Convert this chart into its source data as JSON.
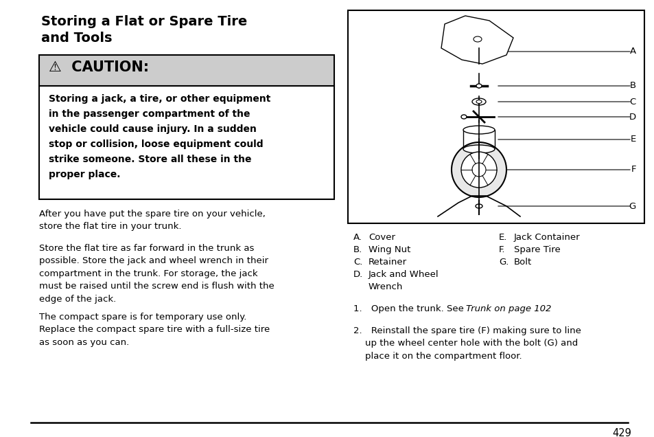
{
  "title_line1": "Storing a Flat or Spare Tire",
  "title_line2": "and Tools",
  "caution_header": "⚠ CAUTION:",
  "caution_body_lines": [
    "Storing a jack, a tire, or other equipment",
    "in the passenger compartment of the",
    "vehicle could cause injury. In a sudden",
    "stop or collision, loose equipment could",
    "strike someone. Store all these in the",
    "proper place."
  ],
  "para1": "After you have put the spare tire on your vehicle,\nstore the flat tire in your trunk.",
  "para2": "Store the flat tire as far forward in the trunk as\npossible. Store the jack and wheel wrench in their\ncompartment in the trunk. For storage, the jack\nmust be raised until the screw end is flush with the\nedge of the jack.",
  "para3": "The compact spare is for temporary use only.\nReplace the compact spare tire with a full-size tire\nas soon as you can.",
  "labels_left": [
    [
      "A.",
      "Cover"
    ],
    [
      "B.",
      "Wing Nut"
    ],
    [
      "C.",
      "Retainer"
    ],
    [
      "D.",
      "Jack and Wheel"
    ],
    [
      "",
      "Wrench"
    ]
  ],
  "labels_right": [
    [
      "E.",
      "Jack Container"
    ],
    [
      "F.",
      "Spare Tire"
    ],
    [
      "G.",
      "Bolt"
    ]
  ],
  "step1_normal": "1. Open the trunk. See ",
  "step1_italic": "Trunk on page 102",
  "step2": "2. Reinstall the spare tire (F) making sure to line\n    up the wheel center hole with the bolt (G) and\n    place it on the compartment floor.",
  "page_number": "429",
  "bg_color": "#ffffff",
  "caution_header_bg": "#cccccc",
  "caution_body_bg": "#ffffff",
  "caution_border": "#000000",
  "diagram_border": "#000000",
  "text_color": "#000000"
}
